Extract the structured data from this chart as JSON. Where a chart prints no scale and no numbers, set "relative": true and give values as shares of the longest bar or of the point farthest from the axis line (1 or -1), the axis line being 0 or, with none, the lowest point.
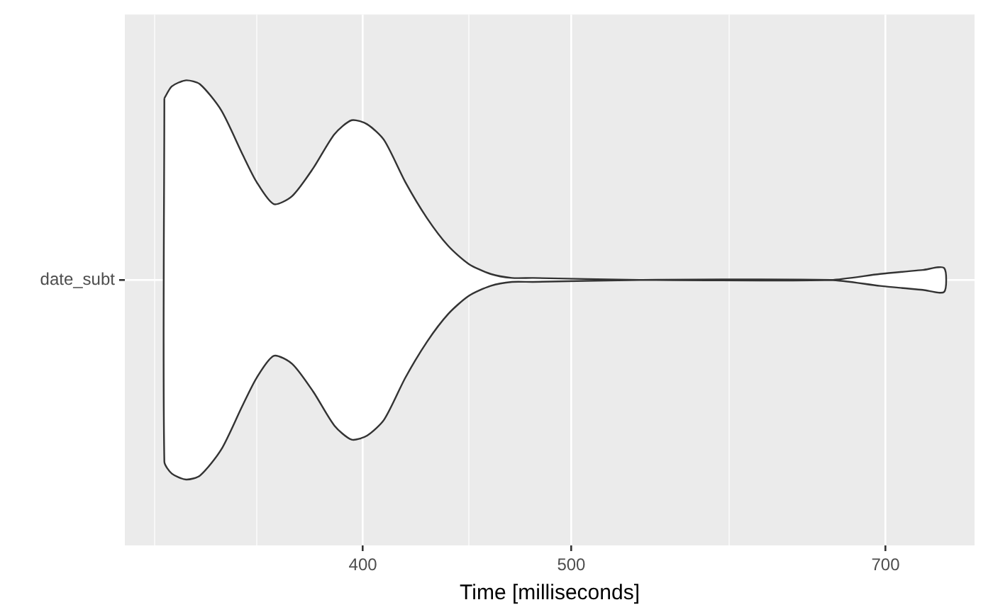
{
  "chart_data": {
    "type": "area",
    "relative": true,
    "log": "x",
    "grid": true,
    "xlabel": "Time [milliseconds]",
    "xlim": [
      310,
      770
    ],
    "xticks": [
      {
        "value": 320,
        "label": null
      },
      {
        "value": 357,
        "label": null
      },
      400,
      {
        "value": 448,
        "label": null
      },
      500,
      {
        "value": 592,
        "label": null
      },
      700
    ],
    "x": [
      323.4,
      326,
      331,
      336,
      343.7,
      351.6,
      357,
      363.6,
      370.8,
      379.3,
      388,
      395.2,
      401.8,
      409.2,
      418.6,
      428.4,
      438.3,
      448,
      458.6,
      469.2,
      480,
      537.8,
      660.1,
      696,
      728.5,
      745.3
    ],
    "series": [
      {
        "name": "date_subt",
        "color": "#ffffff",
        "values": [
          0.91,
          0.97,
          1,
          0.98,
          0.85,
          0.63,
          0.49,
          0.38,
          0.42,
          0.56,
          0.73,
          0.8,
          0.78,
          0.7,
          0.49,
          0.31,
          0.17,
          0.08,
          0.03,
          0.01,
          0.01,
          0,
          0,
          0.03,
          0.05,
          0.06
        ]
      }
    ]
  }
}
